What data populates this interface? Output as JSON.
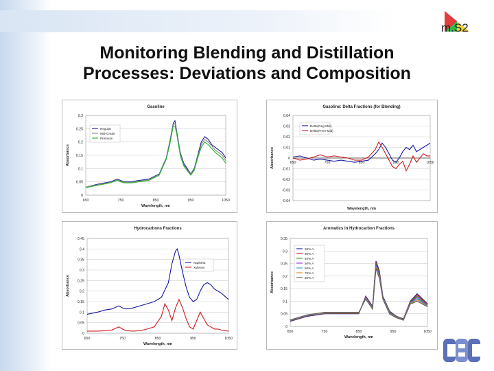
{
  "slide": {
    "title_line1": "Monitoring Blending and Distillation",
    "title_line2": "Processes: Deviations and Composition",
    "logo_text": "m.S2"
  },
  "colors": {
    "accent_blue": "#1f3fa8",
    "regular": "#1a1aa0",
    "midgrade": "#888888",
    "premium": "#28b428",
    "dark_blue": "#1414a0",
    "red": "#d01818"
  },
  "chart_data": [
    {
      "type": "line",
      "title": "Gasoline",
      "xlabel": "Wavelength, nm",
      "ylabel": "Absorbance",
      "xlim": [
        650,
        1050
      ],
      "ylim": [
        0,
        0.3
      ],
      "xticks": [
        "650",
        "750",
        "850",
        "950",
        "1050"
      ],
      "yticks": [
        "0",
        "0.05",
        "0.1",
        "0.15",
        "0.2",
        "0.25",
        "0.3"
      ],
      "legend": "top-left",
      "series": [
        {
          "name": "Regular",
          "color": "#1a1aa0",
          "x": [
            650,
            680,
            700,
            720,
            740,
            750,
            760,
            780,
            800,
            830,
            860,
            880,
            890,
            900,
            905,
            910,
            920,
            930,
            940,
            950,
            960,
            970,
            980,
            990,
            1000,
            1010,
            1020,
            1030,
            1040,
            1050
          ],
          "y": [
            0.03,
            0.04,
            0.045,
            0.05,
            0.06,
            0.055,
            0.05,
            0.05,
            0.055,
            0.06,
            0.08,
            0.14,
            0.2,
            0.27,
            0.28,
            0.24,
            0.16,
            0.12,
            0.1,
            0.08,
            0.1,
            0.15,
            0.2,
            0.22,
            0.21,
            0.19,
            0.18,
            0.17,
            0.16,
            0.14
          ]
        },
        {
          "name": "Mid-Grade",
          "color": "#888888",
          "x": [
            650,
            680,
            700,
            720,
            740,
            750,
            760,
            780,
            800,
            830,
            860,
            880,
            890,
            900,
            905,
            910,
            920,
            930,
            940,
            950,
            960,
            970,
            980,
            990,
            1000,
            1010,
            1020,
            1030,
            1040,
            1050
          ],
          "y": [
            0.03,
            0.038,
            0.043,
            0.048,
            0.058,
            0.053,
            0.048,
            0.048,
            0.053,
            0.058,
            0.078,
            0.138,
            0.195,
            0.265,
            0.27,
            0.235,
            0.155,
            0.115,
            0.095,
            0.078,
            0.097,
            0.145,
            0.19,
            0.21,
            0.2,
            0.185,
            0.17,
            0.16,
            0.15,
            0.13
          ]
        },
        {
          "name": "Premium",
          "color": "#28b428",
          "x": [
            650,
            680,
            700,
            720,
            740,
            750,
            760,
            780,
            800,
            830,
            860,
            880,
            890,
            900,
            905,
            910,
            920,
            930,
            940,
            950,
            960,
            970,
            980,
            990,
            1000,
            1010,
            1020,
            1030,
            1040,
            1050
          ],
          "y": [
            0.028,
            0.036,
            0.041,
            0.046,
            0.056,
            0.05,
            0.046,
            0.046,
            0.05,
            0.055,
            0.075,
            0.135,
            0.19,
            0.26,
            0.26,
            0.23,
            0.15,
            0.11,
            0.092,
            0.075,
            0.093,
            0.14,
            0.18,
            0.2,
            0.19,
            0.175,
            0.16,
            0.15,
            0.14,
            0.12
          ]
        }
      ]
    },
    {
      "type": "line",
      "title": "Gasoline: Delta Fractions (for Blending)",
      "xlabel": "Wavelength, nm",
      "ylabel": "Absorbance",
      "xlim": [
        650,
        1050
      ],
      "ylim": [
        -0.04,
        0.04
      ],
      "xticks": [
        "650",
        "750",
        "850",
        "950",
        "1050"
      ],
      "yticks": [
        "-0.04",
        "-0.03",
        "-0.02",
        "-0.01",
        "0",
        "0.01",
        "0.02",
        "0.03",
        "0.04"
      ],
      "legend": "top-left",
      "series": [
        {
          "name": "Delta(Reg-Mid)",
          "color": "#1414a0",
          "x": [
            650,
            670,
            690,
            710,
            730,
            750,
            770,
            790,
            810,
            830,
            850,
            870,
            890,
            900,
            910,
            920,
            930,
            940,
            950,
            960,
            970,
            980,
            990,
            1000,
            1010,
            1020,
            1030,
            1040,
            1050
          ],
          "y": [
            0.001,
            0.002,
            0,
            -0.002,
            -0.001,
            -0.002,
            -0.003,
            -0.002,
            -0.003,
            -0.004,
            -0.003,
            -0.002,
            0.004,
            0.008,
            0.014,
            0.01,
            0.004,
            -0.002,
            -0.004,
            0,
            0.006,
            0.01,
            0.008,
            0.012,
            0.006,
            0.008,
            0.01,
            0.012,
            0.014
          ]
        },
        {
          "name": "Delta(Prem-Mid)",
          "color": "#d01818",
          "x": [
            650,
            670,
            690,
            710,
            730,
            750,
            770,
            790,
            810,
            830,
            850,
            870,
            890,
            900,
            910,
            920,
            930,
            940,
            950,
            960,
            970,
            980,
            990,
            1000,
            1010,
            1020,
            1030,
            1040,
            1050
          ],
          "y": [
            0.0,
            -0.002,
            -0.001,
            0.001,
            0.003,
            0.001,
            0.002,
            0.001,
            0,
            -0.002,
            -0.002,
            0.001,
            0.008,
            0.015,
            0.01,
            0.004,
            -0.002,
            -0.008,
            -0.01,
            -0.006,
            -0.003,
            -0.012,
            -0.006,
            0.002,
            -0.004,
            0,
            0.004,
            0.002,
            0.002
          ]
        }
      ]
    },
    {
      "type": "line",
      "title": "Hydrocarbons Fractions",
      "xlabel": "Wavelength, nm",
      "ylabel": "Absorbance",
      "xlim": [
        650,
        1050
      ],
      "ylim": [
        0,
        0.45
      ],
      "xticks": [
        "650",
        "750",
        "850",
        "950",
        "1050"
      ],
      "yticks": [
        "0",
        "0.05",
        "0.1",
        "0.15",
        "0.2",
        "0.25",
        "0.3",
        "0.35",
        "0.4",
        "0.45"
      ],
      "legend": "top-right",
      "series": [
        {
          "name": "Naphtha",
          "color": "#1414a0",
          "x": [
            650,
            680,
            700,
            720,
            740,
            750,
            760,
            780,
            800,
            820,
            840,
            860,
            880,
            890,
            900,
            905,
            910,
            920,
            930,
            940,
            950,
            960,
            970,
            980,
            990,
            1000,
            1010,
            1020,
            1030,
            1040,
            1050
          ],
          "y": [
            0.09,
            0.1,
            0.11,
            0.115,
            0.13,
            0.12,
            0.115,
            0.12,
            0.13,
            0.14,
            0.15,
            0.17,
            0.24,
            0.33,
            0.39,
            0.4,
            0.37,
            0.29,
            0.22,
            0.17,
            0.15,
            0.16,
            0.2,
            0.23,
            0.24,
            0.23,
            0.21,
            0.2,
            0.19,
            0.175,
            0.16
          ]
        },
        {
          "name": "Xylenes",
          "color": "#d01818",
          "x": [
            650,
            680,
            700,
            720,
            740,
            750,
            760,
            780,
            800,
            820,
            840,
            860,
            870,
            880,
            890,
            900,
            910,
            920,
            930,
            940,
            950,
            960,
            970,
            980,
            990,
            1000,
            1010,
            1020,
            1030,
            1040,
            1050
          ],
          "y": [
            0.01,
            0.01,
            0.012,
            0.015,
            0.03,
            0.02,
            0.012,
            0.01,
            0.012,
            0.02,
            0.03,
            0.08,
            0.14,
            0.11,
            0.06,
            0.12,
            0.16,
            0.12,
            0.07,
            0.03,
            0.02,
            0.06,
            0.1,
            0.07,
            0.04,
            0.03,
            0.02,
            0.02,
            0.015,
            0.012,
            0.01
          ]
        }
      ]
    },
    {
      "type": "line",
      "title": "Aromatics in Hydrocarbon Fractions",
      "xlabel": "Wavelength, nm",
      "ylabel": "Absorbance",
      "xlim": [
        650,
        1050
      ],
      "ylim": [
        0,
        0.35
      ],
      "xticks": [
        "650",
        "750",
        "850",
        "950",
        "1050"
      ],
      "yticks": [
        "0",
        "0.05",
        "0.1",
        "0.15",
        "0.2",
        "0.25",
        "0.3",
        "0.35"
      ],
      "legend": "top-left",
      "series": [
        {
          "name": "20% A",
          "color": "#1414a0",
          "x": [
            650,
            700,
            750,
            800,
            850,
            870,
            890,
            900,
            910,
            920,
            940,
            960,
            980,
            1000,
            1020,
            1050
          ],
          "y": [
            0.02,
            0.04,
            0.05,
            0.05,
            0.05,
            0.12,
            0.08,
            0.26,
            0.22,
            0.12,
            0.06,
            0.04,
            0.03,
            0.1,
            0.13,
            0.09
          ]
        },
        {
          "name": "30% A",
          "color": "#d01818",
          "x": [
            650,
            700,
            750,
            800,
            850,
            870,
            890,
            900,
            910,
            920,
            940,
            960,
            980,
            1000,
            1020,
            1050
          ],
          "y": [
            0.021,
            0.041,
            0.051,
            0.051,
            0.051,
            0.118,
            0.078,
            0.255,
            0.215,
            0.118,
            0.058,
            0.039,
            0.029,
            0.098,
            0.125,
            0.088
          ]
        },
        {
          "name": "40% A",
          "color": "#28a028",
          "x": [
            650,
            700,
            750,
            800,
            850,
            870,
            890,
            900,
            910,
            920,
            940,
            960,
            980,
            1000,
            1020,
            1050
          ],
          "y": [
            0.022,
            0.042,
            0.052,
            0.052,
            0.052,
            0.116,
            0.076,
            0.25,
            0.21,
            0.116,
            0.056,
            0.038,
            0.028,
            0.096,
            0.12,
            0.086
          ]
        },
        {
          "name": "50% A",
          "color": "#8a2be2",
          "x": [
            650,
            700,
            750,
            800,
            850,
            870,
            890,
            900,
            910,
            920,
            940,
            960,
            980,
            1000,
            1020,
            1050
          ],
          "y": [
            0.023,
            0.043,
            0.053,
            0.053,
            0.053,
            0.114,
            0.074,
            0.245,
            0.205,
            0.114,
            0.054,
            0.037,
            0.027,
            0.094,
            0.115,
            0.084
          ]
        },
        {
          "name": "60% A",
          "color": "#20a0c0",
          "x": [
            650,
            700,
            750,
            800,
            850,
            870,
            890,
            900,
            910,
            920,
            940,
            960,
            980,
            1000,
            1020,
            1050
          ],
          "y": [
            0.024,
            0.044,
            0.054,
            0.054,
            0.054,
            0.112,
            0.072,
            0.24,
            0.2,
            0.112,
            0.052,
            0.036,
            0.026,
            0.092,
            0.11,
            0.082
          ]
        },
        {
          "name": "70% A",
          "color": "#e08020",
          "x": [
            650,
            700,
            750,
            800,
            850,
            870,
            890,
            900,
            910,
            920,
            940,
            960,
            980,
            1000,
            1020,
            1050
          ],
          "y": [
            0.025,
            0.045,
            0.055,
            0.055,
            0.055,
            0.11,
            0.07,
            0.235,
            0.195,
            0.11,
            0.05,
            0.035,
            0.025,
            0.09,
            0.105,
            0.08
          ]
        },
        {
          "name": "80% A",
          "color": "#606060",
          "x": [
            650,
            700,
            750,
            800,
            850,
            870,
            890,
            900,
            910,
            920,
            940,
            960,
            980,
            1000,
            1020,
            1050
          ],
          "y": [
            0.026,
            0.046,
            0.056,
            0.056,
            0.056,
            0.108,
            0.068,
            0.23,
            0.19,
            0.108,
            0.048,
            0.034,
            0.024,
            0.088,
            0.1,
            0.078
          ]
        }
      ]
    }
  ]
}
